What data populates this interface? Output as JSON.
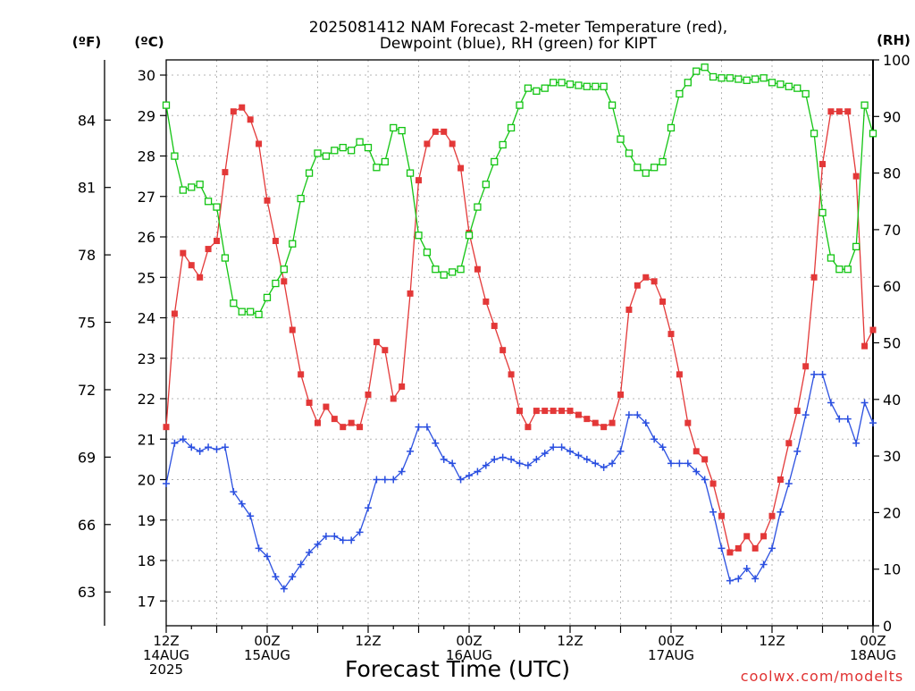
{
  "title": {
    "line1": "2025081412 NAM Forecast 2-meter Temperature (red),",
    "line2": "Dewpoint (blue), RH (green) for KIPT"
  },
  "unit_labels": {
    "fahrenheit": "(ºF)",
    "celsius": "(ºC)",
    "rh": "(RH)"
  },
  "credit": "coolwx.com/modelts",
  "colors": {
    "temperature": "#e33838",
    "dewpoint": "#2a4fe0",
    "rh": "#12c412"
  },
  "chart_data": {
    "type": "line",
    "title": "2025081412 NAM Forecast 2-meter Temperature (red), Dewpoint (blue), RH (green) for KIPT",
    "xlabel": "Forecast Time (UTC)",
    "x_hours_from_start": [
      0,
      1,
      2,
      3,
      4,
      5,
      6,
      7,
      8,
      9,
      10,
      11,
      12,
      13,
      14,
      15,
      16,
      17,
      18,
      19,
      20,
      21,
      22,
      23,
      24,
      25,
      26,
      27,
      28,
      29,
      30,
      31,
      32,
      33,
      34,
      35,
      36,
      37,
      38,
      39,
      40,
      41,
      42,
      43,
      44,
      45,
      46,
      47,
      48,
      49,
      50,
      51,
      52,
      53,
      54,
      55,
      56,
      57,
      58,
      59,
      60,
      61,
      62,
      63,
      64,
      65,
      66,
      67,
      68,
      69,
      70,
      71,
      72,
      73,
      74,
      75,
      76,
      77,
      78,
      79,
      80,
      81,
      82,
      83,
      84
    ],
    "xlim_hours": [
      0,
      84
    ],
    "x_ticks": [
      {
        "hour": 0,
        "lines": [
          "12Z",
          "14AUG",
          "2025"
        ]
      },
      {
        "hour": 12,
        "lines": [
          "00Z",
          "15AUG"
        ]
      },
      {
        "hour": 24,
        "lines": [
          "12Z"
        ]
      },
      {
        "hour": 36,
        "lines": [
          "00Z",
          "16AUG"
        ]
      },
      {
        "hour": 48,
        "lines": [
          "12Z"
        ]
      },
      {
        "hour": 60,
        "lines": [
          "00Z",
          "17AUG"
        ]
      },
      {
        "hour": 72,
        "lines": [
          "12Z"
        ]
      },
      {
        "hour": 84,
        "lines": [
          "00Z",
          "18AUG"
        ]
      }
    ],
    "y_celsius": {
      "ylim": [
        16.4,
        30.3
      ],
      "ticks": [
        17,
        18,
        19,
        20,
        21,
        22,
        23,
        24,
        25,
        26,
        27,
        28,
        29,
        30
      ]
    },
    "y_fahrenheit": {
      "ticks": [
        63,
        66,
        69,
        72,
        75,
        78,
        81,
        84
      ]
    },
    "y_rh": {
      "ylim": [
        0,
        100
      ],
      "ticks": [
        0,
        10,
        20,
        30,
        40,
        50,
        60,
        70,
        80,
        90,
        100
      ]
    },
    "series": [
      {
        "name": "Temperature",
        "axis": "celsius",
        "marker": "filled-square",
        "values": [
          21.3,
          24.1,
          25.6,
          25.3,
          25.0,
          25.7,
          25.9,
          27.6,
          29.1,
          29.2,
          28.9,
          28.3,
          26.9,
          25.9,
          24.9,
          23.7,
          22.6,
          21.9,
          21.4,
          21.8,
          21.5,
          21.3,
          21.4,
          21.3,
          22.1,
          23.4,
          23.2,
          22.0,
          22.3,
          24.6,
          27.4,
          28.3,
          28.6,
          28.6,
          28.3,
          27.7,
          26.1,
          25.2,
          24.4,
          23.8,
          23.2,
          22.6,
          21.7,
          21.3,
          21.7,
          21.7,
          21.7,
          21.7,
          21.7,
          21.6,
          21.5,
          21.4,
          21.3,
          21.4,
          22.1,
          24.2,
          24.8,
          25.0,
          24.9,
          24.4,
          23.6,
          22.6,
          21.4,
          20.7,
          20.5,
          19.9,
          19.1,
          18.2,
          18.3,
          18.6,
          18.3,
          18.6,
          19.1,
          20.0,
          20.9,
          21.7,
          22.8,
          25.0,
          27.8,
          29.1,
          29.1,
          29.1,
          27.5,
          23.3,
          23.7
        ]
      },
      {
        "name": "Dewpoint",
        "axis": "celsius",
        "marker": "plus",
        "values": [
          19.9,
          20.9,
          21.0,
          20.8,
          20.7,
          20.8,
          20.75,
          20.8,
          19.7,
          19.4,
          19.1,
          18.3,
          18.1,
          17.6,
          17.3,
          17.6,
          17.9,
          18.2,
          18.4,
          18.6,
          18.6,
          18.5,
          18.5,
          18.7,
          19.3,
          20.0,
          20.0,
          20.0,
          20.2,
          20.7,
          21.3,
          21.3,
          20.9,
          20.5,
          20.4,
          20.0,
          20.1,
          20.2,
          20.35,
          20.5,
          20.55,
          20.5,
          20.4,
          20.35,
          20.5,
          20.65,
          20.8,
          20.8,
          20.7,
          20.6,
          20.5,
          20.4,
          20.3,
          20.4,
          20.7,
          21.6,
          21.6,
          21.4,
          21.0,
          20.8,
          20.4,
          20.4,
          20.4,
          20.2,
          20.0,
          19.2,
          18.3,
          17.5,
          17.55,
          17.8,
          17.55,
          17.9,
          18.3,
          19.2,
          19.9,
          20.7,
          21.6,
          22.6,
          22.6,
          21.9,
          21.5,
          21.5,
          20.9,
          21.9,
          21.4
        ]
      },
      {
        "name": "RH",
        "axis": "rh",
        "marker": "open-square",
        "values": [
          92,
          83,
          77,
          77.5,
          78,
          75,
          74,
          65,
          57,
          55.5,
          55.5,
          55,
          58,
          60.5,
          63,
          67.5,
          75.5,
          80,
          83.5,
          83,
          84,
          84.5,
          84,
          85.5,
          84.5,
          81,
          82,
          88,
          87.5,
          80,
          69,
          66,
          63,
          62,
          62.5,
          63,
          69,
          74,
          78,
          82,
          85,
          88,
          92,
          95,
          94.5,
          95,
          96,
          96,
          95.7,
          95.5,
          95.3,
          95.3,
          95.3,
          92,
          86,
          83.5,
          81,
          80,
          81,
          82,
          88,
          94,
          96,
          98,
          98.7,
          97,
          96.8,
          96.8,
          96.6,
          96.4,
          96.6,
          96.8,
          96,
          95.7,
          95.3,
          95,
          94,
          87,
          73,
          65,
          63,
          63,
          67,
          92,
          87
        ]
      }
    ],
    "grid": true,
    "legend": "none (series described in title)"
  }
}
